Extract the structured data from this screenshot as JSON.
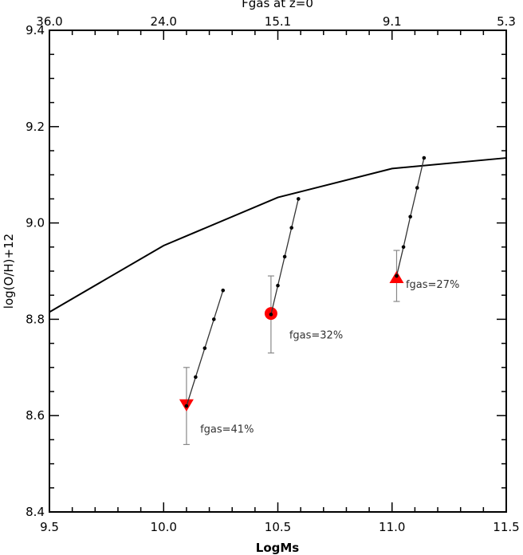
{
  "chart_data": {
    "type": "line",
    "xlabel": "LogMs",
    "ylabel": "log(O/H)+12",
    "top_axis_label": "Fgas at z=0",
    "xlim": [
      9.5,
      11.5
    ],
    "ylim": [
      8.4,
      9.4
    ],
    "x_ticks": [
      "9.5",
      "10.0",
      "10.5",
      "11.0",
      "11.5"
    ],
    "y_ticks": [
      "8.4",
      "8.6",
      "8.8",
      "9.0",
      "9.2",
      "9.4"
    ],
    "top_ticks": [
      "36.0",
      "24.0",
      "15.1",
      "9.1",
      "5.3"
    ],
    "grid": false,
    "relation": {
      "x": [
        9.5,
        10.0,
        10.5,
        11.0,
        11.5
      ],
      "y": [
        8.815,
        8.953,
        9.053,
        9.113,
        9.135
      ]
    },
    "tracks": [
      {
        "points": [
          [
            10.1,
            8.62
          ],
          [
            10.14,
            8.68
          ],
          [
            10.18,
            8.74
          ],
          [
            10.22,
            8.8
          ],
          [
            10.26,
            8.86
          ]
        ],
        "marker": "triangle-down",
        "marker_point": [
          10.1,
          8.622
        ],
        "error": [
          8.54,
          8.7
        ],
        "label": "fgas=41%",
        "label_pos": [
          10.16,
          8.565
        ]
      },
      {
        "points": [
          [
            10.47,
            8.81
          ],
          [
            10.5,
            8.87
          ],
          [
            10.53,
            8.93
          ],
          [
            10.56,
            8.99
          ],
          [
            10.59,
            9.05
          ]
        ],
        "marker": "circle",
        "marker_point": [
          10.47,
          8.812
        ],
        "error": [
          8.73,
          8.89
        ],
        "label": "fgas=32%",
        "label_pos": [
          10.55,
          8.76
        ]
      },
      {
        "points": [
          [
            11.02,
            8.89
          ],
          [
            11.05,
            8.95
          ],
          [
            11.08,
            9.013
          ],
          [
            11.11,
            9.073
          ],
          [
            11.14,
            9.135
          ]
        ],
        "marker": "triangle-up",
        "marker_point": [
          11.02,
          8.887
        ],
        "error": [
          8.837,
          8.943
        ],
        "label": "fgas=27%",
        "label_pos": [
          11.06,
          8.865
        ]
      }
    ],
    "colors": {
      "marker": "#ff0000",
      "line": "#000000",
      "track": "#333333",
      "error": "#888888",
      "text": "#333333"
    }
  }
}
